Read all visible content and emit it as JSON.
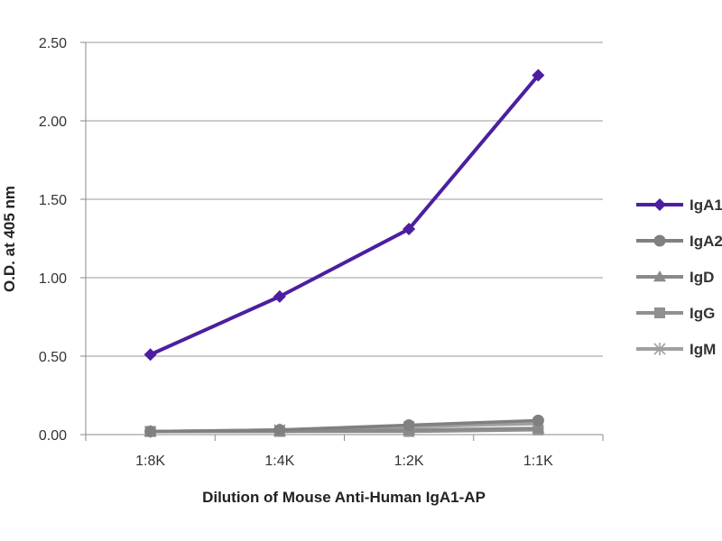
{
  "chart_data": {
    "type": "line",
    "title": "",
    "xlabel": "Dilution of Mouse Anti-Human IgA1-AP",
    "ylabel": "O.D. at 405 nm",
    "categories": [
      "1:8K",
      "1:4K",
      "1:2K",
      "1:1K"
    ],
    "ylim": [
      0,
      2.5
    ],
    "yticks": [
      "0.00",
      "0.50",
      "1.00",
      "1.50",
      "2.00",
      "2.50"
    ],
    "grid": true,
    "legend_position": "right",
    "series": [
      {
        "name": "IgA1",
        "values": [
          0.51,
          0.88,
          1.31,
          2.29
        ],
        "color": "#4B1FA0",
        "marker": "diamond"
      },
      {
        "name": "IgA2",
        "values": [
          0.02,
          0.03,
          0.06,
          0.09
        ],
        "color": "#808080",
        "marker": "circle"
      },
      {
        "name": "IgD",
        "values": [
          0.02,
          0.02,
          0.03,
          0.04
        ],
        "color": "#8A8A8A",
        "marker": "triangle"
      },
      {
        "name": "IgG",
        "values": [
          0.02,
          0.02,
          0.02,
          0.03
        ],
        "color": "#909090",
        "marker": "square"
      },
      {
        "name": "IgM",
        "values": [
          0.02,
          0.03,
          0.05,
          0.07
        ],
        "color": "#A0A0A0",
        "marker": "star"
      }
    ]
  }
}
